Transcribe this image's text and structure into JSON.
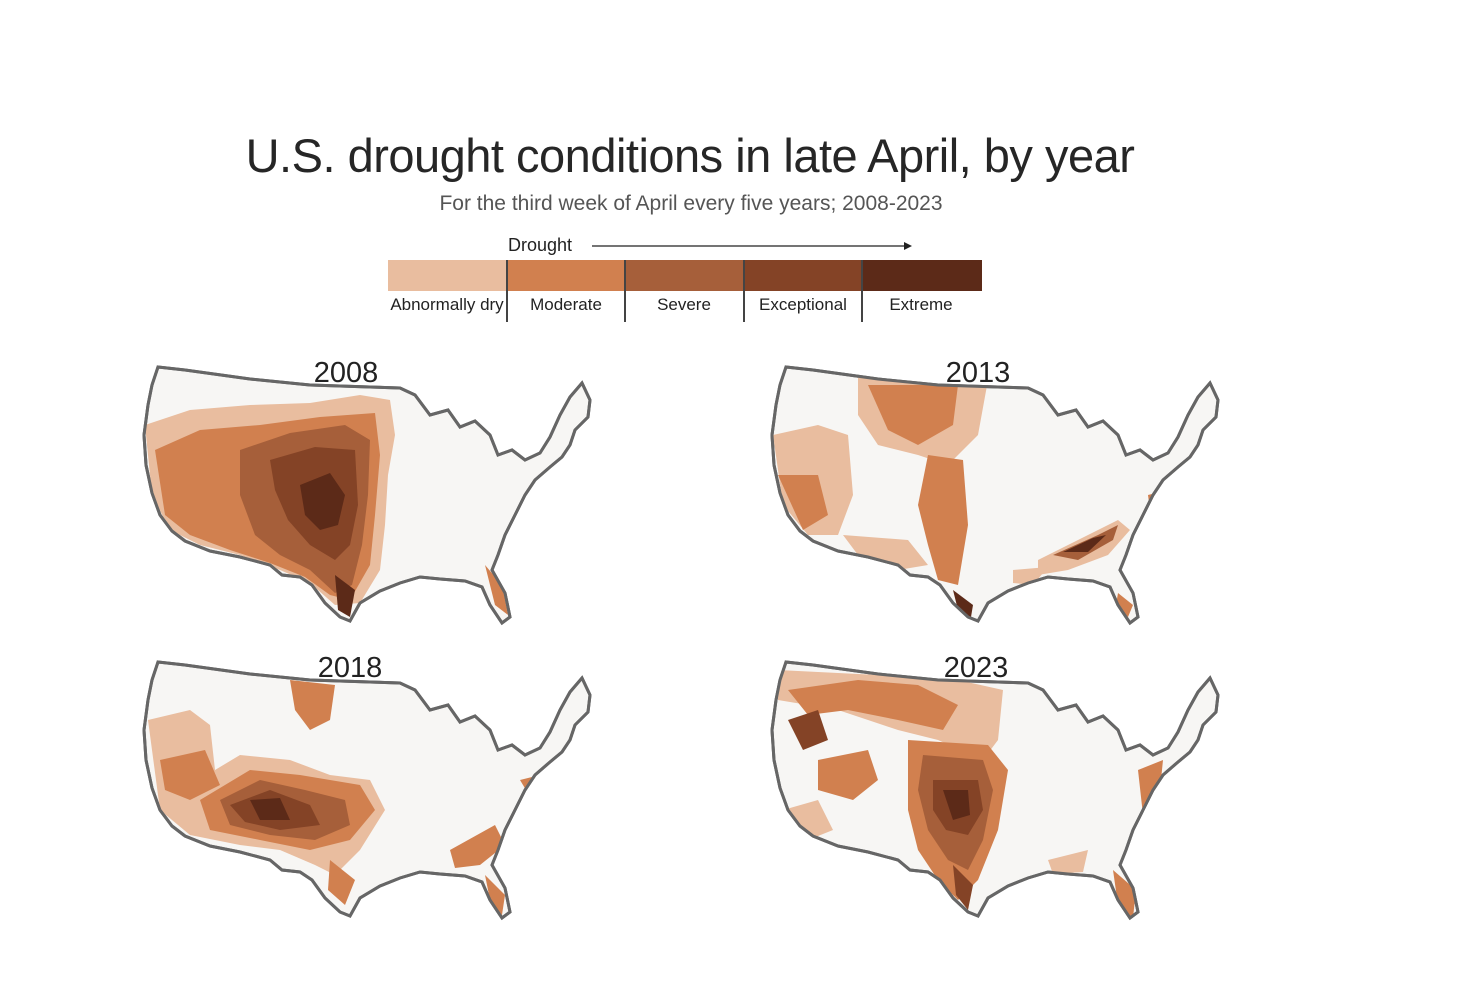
{
  "title": "U.S. drought conditions in late April, by year",
  "subtitle": "For the third week of April every five years; 2008-2023",
  "legend": {
    "arrow_label": "Drought",
    "categories": [
      {
        "label": "Abnormally dry",
        "color": "#e9bd9f"
      },
      {
        "label": "Moderate",
        "color": "#d1804f"
      },
      {
        "label": "Severe",
        "color": "#a65f3a"
      },
      {
        "label": "Exceptional",
        "color": "#844326"
      },
      {
        "label": "Extreme",
        "color": "#5c2a18"
      }
    ]
  },
  "maps": [
    {
      "year": "2008"
    },
    {
      "year": "2013"
    },
    {
      "year": "2018"
    },
    {
      "year": "2023"
    }
  ]
}
